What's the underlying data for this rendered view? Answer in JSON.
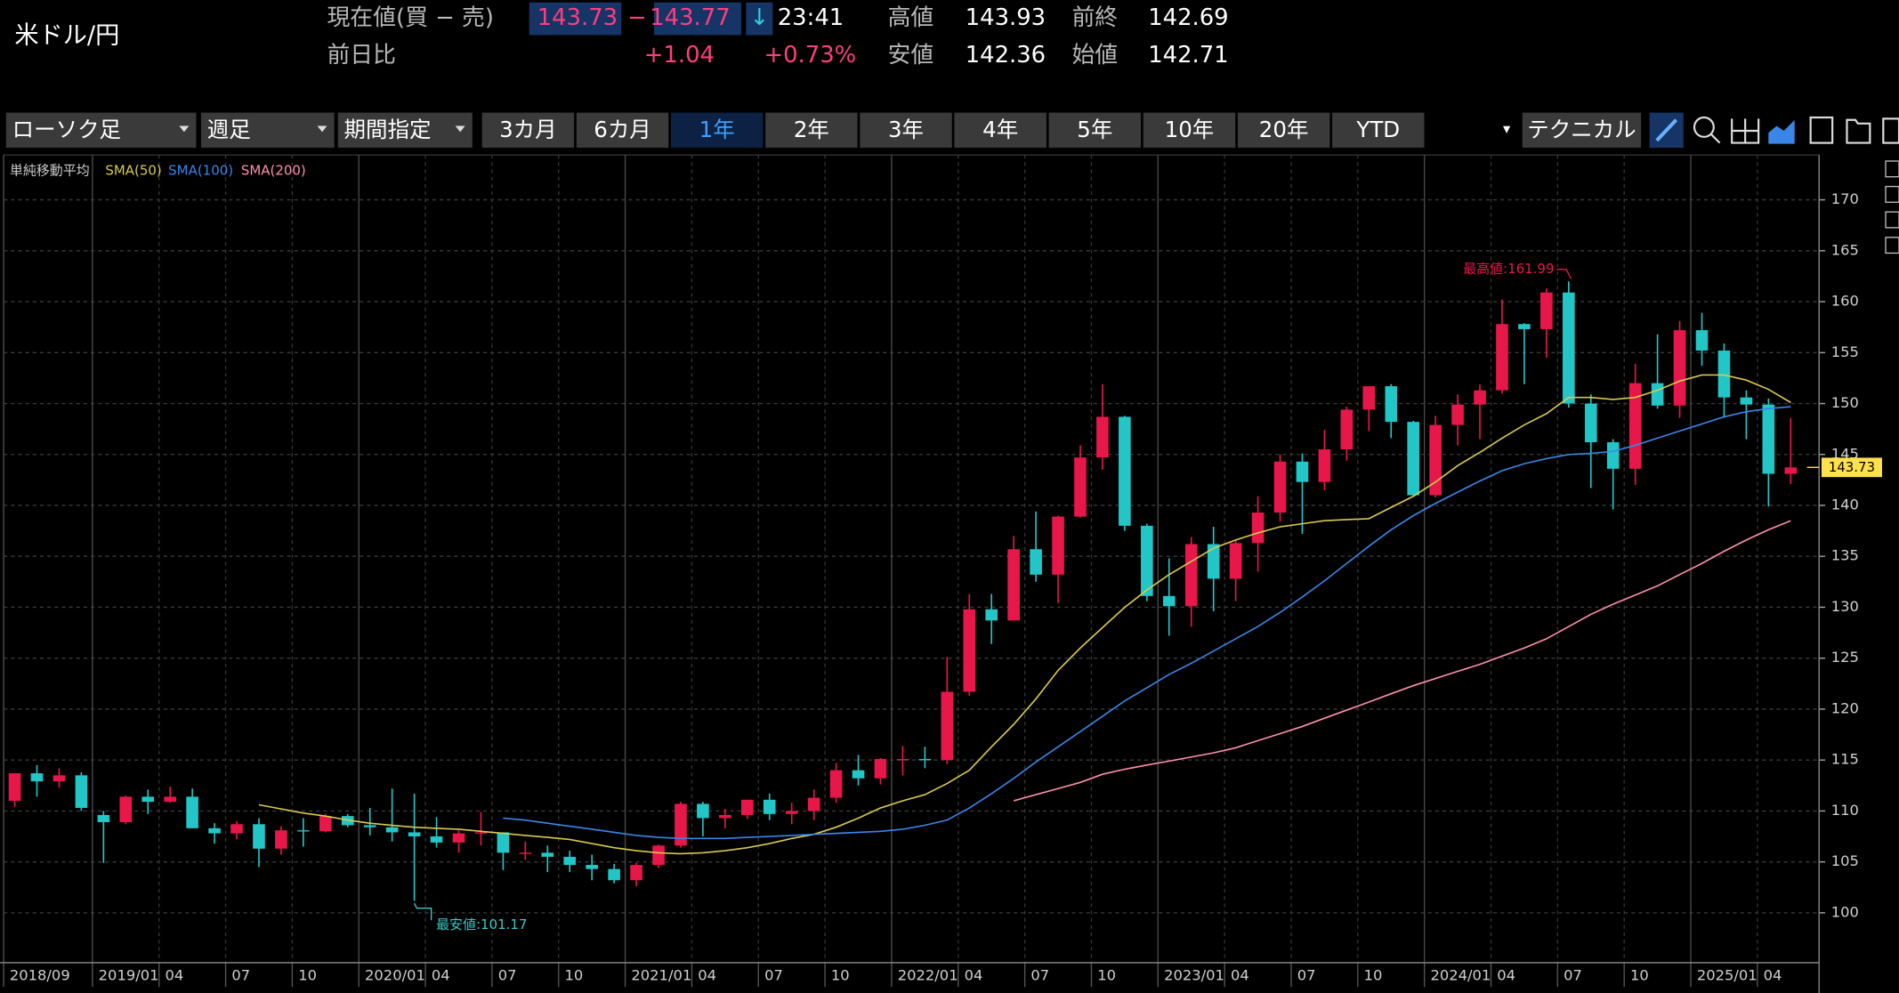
{
  "header": {
    "pair": "米ドル/円",
    "price_label": "現在値(買 − 売)",
    "bid": "143.73",
    "separator": "−",
    "ask": "143.77",
    "direction": "↓",
    "time": "23:41",
    "change_label": "前日比",
    "change": "+1.04",
    "change_pct": "+0.73%",
    "stats": [
      {
        "label": "高値",
        "value": "143.93"
      },
      {
        "label": "前終",
        "value": "142.69"
      },
      {
        "label": "安値",
        "value": "142.36"
      },
      {
        "label": "始値",
        "value": "142.71"
      }
    ]
  },
  "toolbar": {
    "dropdowns": [
      "ローソク足",
      "週足",
      "期間指定"
    ],
    "periods": [
      "3カ月",
      "6カ月",
      "1年",
      "2年",
      "3年",
      "4年",
      "5年",
      "10年",
      "20年",
      "YTD"
    ],
    "selected_period": 2,
    "technical": "テクニカル"
  },
  "chart_data": {
    "type": "candlestick",
    "legend_title": "単純移動平均",
    "up_color": "#e8174a",
    "down_color": "#22c6c6",
    "grid": true,
    "annotations": [
      {
        "text": "最高値:161.99",
        "index": 70,
        "value": 161.99,
        "color": "#e8174a"
      },
      {
        "text": "最安値:101.17",
        "index": 18,
        "value": 101.17,
        "color": "#3cc8c8"
      }
    ],
    "categories": [
      "2018/09",
      "2018/10",
      "2018/11",
      "2018/12",
      "2019/01",
      "2019/02",
      "2019/03",
      "2019/04",
      "2019/05",
      "2019/06",
      "2019/07",
      "2019/08",
      "2019/09",
      "2019/10",
      "2019/11",
      "2019/12",
      "2020/01",
      "2020/02",
      "2020/03",
      "2020/04",
      "2020/05",
      "2020/06",
      "2020/07",
      "2020/08",
      "2020/09",
      "2020/10",
      "2020/11",
      "2020/12",
      "2021/01",
      "2021/02",
      "2021/03",
      "2021/04",
      "2021/05",
      "2021/06",
      "2021/07",
      "2021/08",
      "2021/09",
      "2021/10",
      "2021/11",
      "2021/12",
      "2022/01",
      "2022/02",
      "2022/03",
      "2022/04",
      "2022/05",
      "2022/06",
      "2022/07",
      "2022/08",
      "2022/09",
      "2022/10",
      "2022/11",
      "2022/12",
      "2023/01",
      "2023/02",
      "2023/03",
      "2023/04",
      "2023/05",
      "2023/06",
      "2023/07",
      "2023/08",
      "2023/09",
      "2023/10",
      "2023/11",
      "2023/12",
      "2024/01",
      "2024/02",
      "2024/03",
      "2024/04",
      "2024/05",
      "2024/06",
      "2024/07",
      "2024/08",
      "2024/09",
      "2024/10",
      "2024/11",
      "2024/12",
      "2025/01",
      "2025/02",
      "2025/03",
      "2025/04",
      "2025/05"
    ],
    "open": [
      111.0,
      113.7,
      112.9,
      113.5,
      109.6,
      108.9,
      111.4,
      110.9,
      111.4,
      108.3,
      107.8,
      108.7,
      106.3,
      108.1,
      108.0,
      109.5,
      108.6,
      108.4,
      107.9,
      107.5,
      106.9,
      107.8,
      107.9,
      105.9,
      105.9,
      105.5,
      104.7,
      104.3,
      103.2,
      104.7,
      106.6,
      110.7,
      109.3,
      109.6,
      111.1,
      109.7,
      110.0,
      111.3,
      114.0,
      113.2,
      115.1,
      115.1,
      115.0,
      121.7,
      129.8,
      128.7,
      135.7,
      133.2,
      138.9,
      144.7,
      148.7,
      138.0,
      131.1,
      130.1,
      136.2,
      132.8,
      136.3,
      139.3,
      144.3,
      142.3,
      145.5,
      149.4,
      151.7,
      148.2,
      141.0,
      147.9,
      149.9,
      151.3,
      157.8,
      157.3,
      160.9,
      150.0,
      146.2,
      143.6,
      152.0,
      149.8,
      157.2,
      155.2,
      150.6,
      149.9,
      143.1
    ],
    "high": [
      113.7,
      114.5,
      114.2,
      113.8,
      110.0,
      111.5,
      112.1,
      112.4,
      112.2,
      108.8,
      109.0,
      109.3,
      108.5,
      109.3,
      109.7,
      109.7,
      110.3,
      112.2,
      111.7,
      109.4,
      108.1,
      109.9,
      107.9,
      107.0,
      106.6,
      106.1,
      105.7,
      104.8,
      104.9,
      106.7,
      110.9,
      110.9,
      110.2,
      111.1,
      111.7,
      110.8,
      112.1,
      114.7,
      115.5,
      115.2,
      116.4,
      116.3,
      125.1,
      131.3,
      131.3,
      137.0,
      139.4,
      139.0,
      145.9,
      151.9,
      148.8,
      138.2,
      134.8,
      136.9,
      137.9,
      136.6,
      140.9,
      145.0,
      145.1,
      147.4,
      149.7,
      151.7,
      151.9,
      148.3,
      148.8,
      150.9,
      151.9,
      160.2,
      157.9,
      161.3,
      161.99,
      150.9,
      146.5,
      153.9,
      156.8,
      158.1,
      158.9,
      155.9,
      151.3,
      150.5,
      148.6
    ],
    "low": [
      110.4,
      111.4,
      112.3,
      110.0,
      104.9,
      108.7,
      109.7,
      110.8,
      108.3,
      106.8,
      107.2,
      104.5,
      105.7,
      106.5,
      107.9,
      108.4,
      107.6,
      107.0,
      101.17,
      106.4,
      105.9,
      106.6,
      104.2,
      105.2,
      104.0,
      104.0,
      103.2,
      102.9,
      102.6,
      104.4,
      106.4,
      107.5,
      108.3,
      109.2,
      109.1,
      108.7,
      109.1,
      110.8,
      112.5,
      112.6,
      113.5,
      114.2,
      114.6,
      121.3,
      126.4,
      128.7,
      132.5,
      130.4,
      138.8,
      143.5,
      137.5,
      130.6,
      127.2,
      128.1,
      129.6,
      130.6,
      133.5,
      138.4,
      137.2,
      141.5,
      144.4,
      147.3,
      146.6,
      140.9,
      140.8,
      145.9,
      146.5,
      151.0,
      151.9,
      154.5,
      149.6,
      141.7,
      139.6,
      142.0,
      149.5,
      148.6,
      153.7,
      148.6,
      146.5,
      139.9,
      142.1
    ],
    "close": [
      113.7,
      112.9,
      113.5,
      110.3,
      108.9,
      111.4,
      110.9,
      111.4,
      108.3,
      107.8,
      108.7,
      106.3,
      108.1,
      108.0,
      109.5,
      108.6,
      108.4,
      107.9,
      107.5,
      106.9,
      107.8,
      107.9,
      105.9,
      105.9,
      105.5,
      104.7,
      104.3,
      103.2,
      104.7,
      106.6,
      110.7,
      109.3,
      109.6,
      111.1,
      109.7,
      110.0,
      111.3,
      114.0,
      113.2,
      115.1,
      115.1,
      115.0,
      121.7,
      129.8,
      128.7,
      135.7,
      133.2,
      138.9,
      144.7,
      148.7,
      138.0,
      131.1,
      130.1,
      136.2,
      132.8,
      136.3,
      139.3,
      144.3,
      142.3,
      145.5,
      149.4,
      151.7,
      148.2,
      141.0,
      147.9,
      149.9,
      151.3,
      157.8,
      157.3,
      160.9,
      150.0,
      146.2,
      143.6,
      152.0,
      149.8,
      157.2,
      155.2,
      150.6,
      149.9,
      143.1,
      143.73
    ],
    "series": [
      {
        "name": "SMA(50)",
        "color": "#d8c850",
        "values": [
          null,
          null,
          null,
          null,
          null,
          null,
          null,
          null,
          null,
          null,
          null,
          110.6,
          110.2,
          109.8,
          109.5,
          109.1,
          108.8,
          108.6,
          108.4,
          108.3,
          108.2,
          108.0,
          107.8,
          107.6,
          107.4,
          107.2,
          106.8,
          106.4,
          106.1,
          105.9,
          105.8,
          105.9,
          106.1,
          106.4,
          106.8,
          107.3,
          107.7,
          108.4,
          109.3,
          110.3,
          111.0,
          111.6,
          112.7,
          114.0,
          116.3,
          118.5,
          121.0,
          123.8,
          126.0,
          128.0,
          130.0,
          131.7,
          133.2,
          134.5,
          135.8,
          136.6,
          137.3,
          137.9,
          138.2,
          138.5,
          138.6,
          138.7,
          139.8,
          140.9,
          142.3,
          143.9,
          145.2,
          146.6,
          147.9,
          149.0,
          150.6,
          150.6,
          150.4,
          150.6,
          151.3,
          152.2,
          152.8,
          152.8,
          152.3,
          151.4,
          150.1
        ]
      },
      {
        "name": "SMA(100)",
        "color": "#3a86e8",
        "values": [
          null,
          null,
          null,
          null,
          null,
          null,
          null,
          null,
          null,
          null,
          null,
          null,
          null,
          null,
          null,
          null,
          null,
          null,
          null,
          null,
          null,
          null,
          109.3,
          109.1,
          108.8,
          108.5,
          108.2,
          107.9,
          107.6,
          107.4,
          107.3,
          107.3,
          107.3,
          107.4,
          107.5,
          107.6,
          107.7,
          107.8,
          107.9,
          108.0,
          108.2,
          108.6,
          109.1,
          110.3,
          111.7,
          113.2,
          114.8,
          116.3,
          117.8,
          119.3,
          120.8,
          122.1,
          123.4,
          124.5,
          125.7,
          126.9,
          128.1,
          129.5,
          131.0,
          132.6,
          134.3,
          136.0,
          137.6,
          139.0,
          140.2,
          141.3,
          142.4,
          143.4,
          144.1,
          144.6,
          145.0,
          145.1,
          145.3,
          145.9,
          146.6,
          147.3,
          148.0,
          148.7,
          149.2,
          149.5,
          149.7
        ]
      },
      {
        "name": "SMA(200)",
        "color": "#ff8fb0",
        "values": [
          null,
          null,
          null,
          null,
          null,
          null,
          null,
          null,
          null,
          null,
          null,
          null,
          null,
          null,
          null,
          null,
          null,
          null,
          null,
          null,
          null,
          null,
          null,
          null,
          null,
          null,
          null,
          null,
          null,
          null,
          null,
          null,
          null,
          null,
          null,
          null,
          null,
          null,
          null,
          null,
          null,
          null,
          null,
          null,
          null,
          111.0,
          111.6,
          112.2,
          112.8,
          113.6,
          114.1,
          114.5,
          114.9,
          115.3,
          115.7,
          116.2,
          116.9,
          117.6,
          118.3,
          119.1,
          119.9,
          120.7,
          121.5,
          122.3,
          123.0,
          123.7,
          124.4,
          125.2,
          126.0,
          126.9,
          128.1,
          129.3,
          130.3,
          131.2,
          132.1,
          133.2,
          134.3,
          135.5,
          136.6,
          137.6,
          138.5
        ]
      }
    ],
    "ylim": [
      95.1,
      174.4
    ],
    "yticks": [
      100,
      105,
      110,
      115,
      120,
      125,
      130,
      135,
      140,
      145,
      150,
      155,
      160,
      165,
      170
    ],
    "xticks": [
      {
        "value": 0,
        "label": "2018/09"
      },
      {
        "value": 4,
        "label": "2019/01"
      },
      {
        "value": 7,
        "label": "04"
      },
      {
        "value": 10,
        "label": "07"
      },
      {
        "value": 13,
        "label": "10"
      },
      {
        "value": 16,
        "label": "2020/01"
      },
      {
        "value": 19,
        "label": "04"
      },
      {
        "value": 22,
        "label": "07"
      },
      {
        "value": 25,
        "label": "10"
      },
      {
        "value": 28,
        "label": "2021/01"
      },
      {
        "value": 31,
        "label": "04"
      },
      {
        "value": 34,
        "label": "07"
      },
      {
        "value": 37,
        "label": "10"
      },
      {
        "value": 40,
        "label": "2022/01"
      },
      {
        "value": 43,
        "label": "04"
      },
      {
        "value": 46,
        "label": "07"
      },
      {
        "value": 49,
        "label": "10"
      },
      {
        "value": 52,
        "label": "2023/01"
      },
      {
        "value": 55,
        "label": "04"
      },
      {
        "value": 58,
        "label": "07"
      },
      {
        "value": 61,
        "label": "10"
      },
      {
        "value": 64,
        "label": "2024/01"
      },
      {
        "value": 67,
        "label": "04"
      },
      {
        "value": 70,
        "label": "07"
      },
      {
        "value": 73,
        "label": "10"
      },
      {
        "value": 76,
        "label": "2025/01"
      },
      {
        "value": 79,
        "label": "04"
      }
    ]
  }
}
